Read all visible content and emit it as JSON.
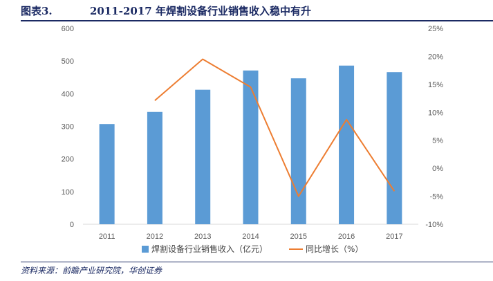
{
  "figure": {
    "number": "图表3.",
    "title": "2011-2017 年焊割设备行业销售收入稳中有升",
    "source": "资料来源：前瞻产业研究院，华创证券"
  },
  "colors": {
    "bar": "#5b9bd5",
    "line": "#ed7d31",
    "header": "#1b2a63"
  },
  "chart_data": {
    "type": "bar+line",
    "title": "2011-2017 年焊割设备行业销售收入稳中有升",
    "categories": [
      "2011",
      "2012",
      "2013",
      "2014",
      "2015",
      "2016",
      "2017"
    ],
    "series": [
      {
        "name": "焊割设备行业销售收入（亿元）",
        "type": "bar",
        "axis": "left",
        "values": [
          307,
          344,
          412,
          471,
          447,
          486,
          466
        ]
      },
      {
        "name": "同比增长（%）",
        "type": "line",
        "axis": "right",
        "values": [
          null,
          12.1,
          19.5,
          14.5,
          -5.0,
          8.7,
          -4.1
        ]
      }
    ],
    "y_left": {
      "min": 0,
      "max": 600,
      "step": 100,
      "ticks": [
        "0",
        "100",
        "200",
        "300",
        "400",
        "500",
        "600"
      ]
    },
    "y_right": {
      "min": -10,
      "max": 25,
      "step": 5,
      "ticks": [
        "-10%",
        "-5%",
        "0%",
        "5%",
        "10%",
        "15%",
        "20%",
        "25%"
      ]
    },
    "grid": false,
    "legend_position": "bottom"
  }
}
